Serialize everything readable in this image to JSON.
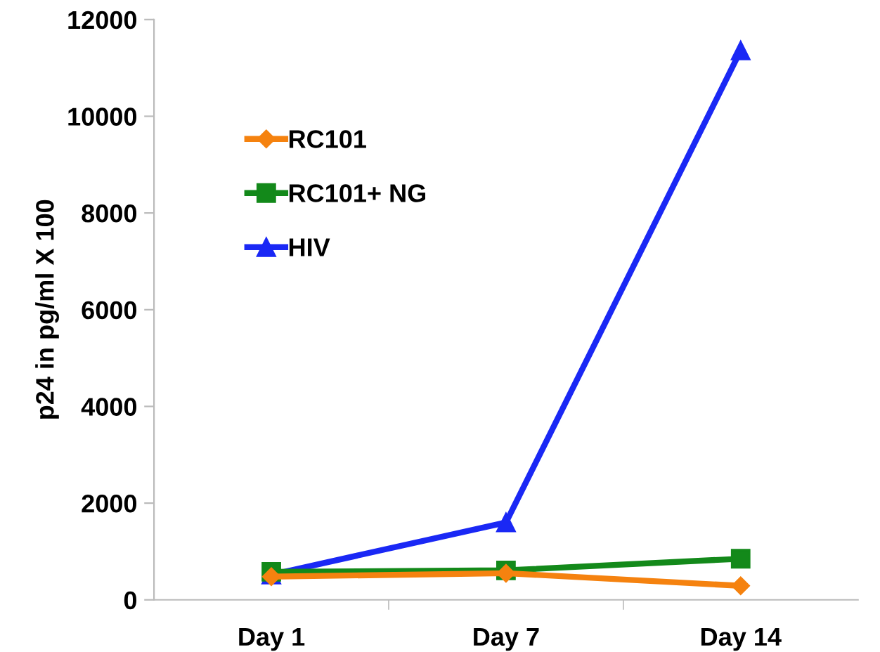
{
  "chart_data": {
    "type": "line",
    "ylabel": "p24 in pg/ml X 100",
    "categories": [
      "Day 1",
      "Day 7",
      "Day 14"
    ],
    "ylim": [
      0,
      12000
    ],
    "yticks": [
      0,
      2000,
      4000,
      6000,
      8000,
      10000,
      12000
    ],
    "grid": false,
    "legend": "top left",
    "series": [
      {
        "name": "RC101",
        "color": "#f5820f",
        "marker": "diamond",
        "values": [
          480,
          550,
          290
        ]
      },
      {
        "name": "RC101+ NG",
        "color": "#13891a",
        "marker": "square",
        "values": [
          580,
          610,
          850
        ]
      },
      {
        "name": "HIV",
        "color": "#1a28f5",
        "marker": "triangle",
        "values": [
          520,
          1600,
          11360
        ]
      }
    ]
  }
}
